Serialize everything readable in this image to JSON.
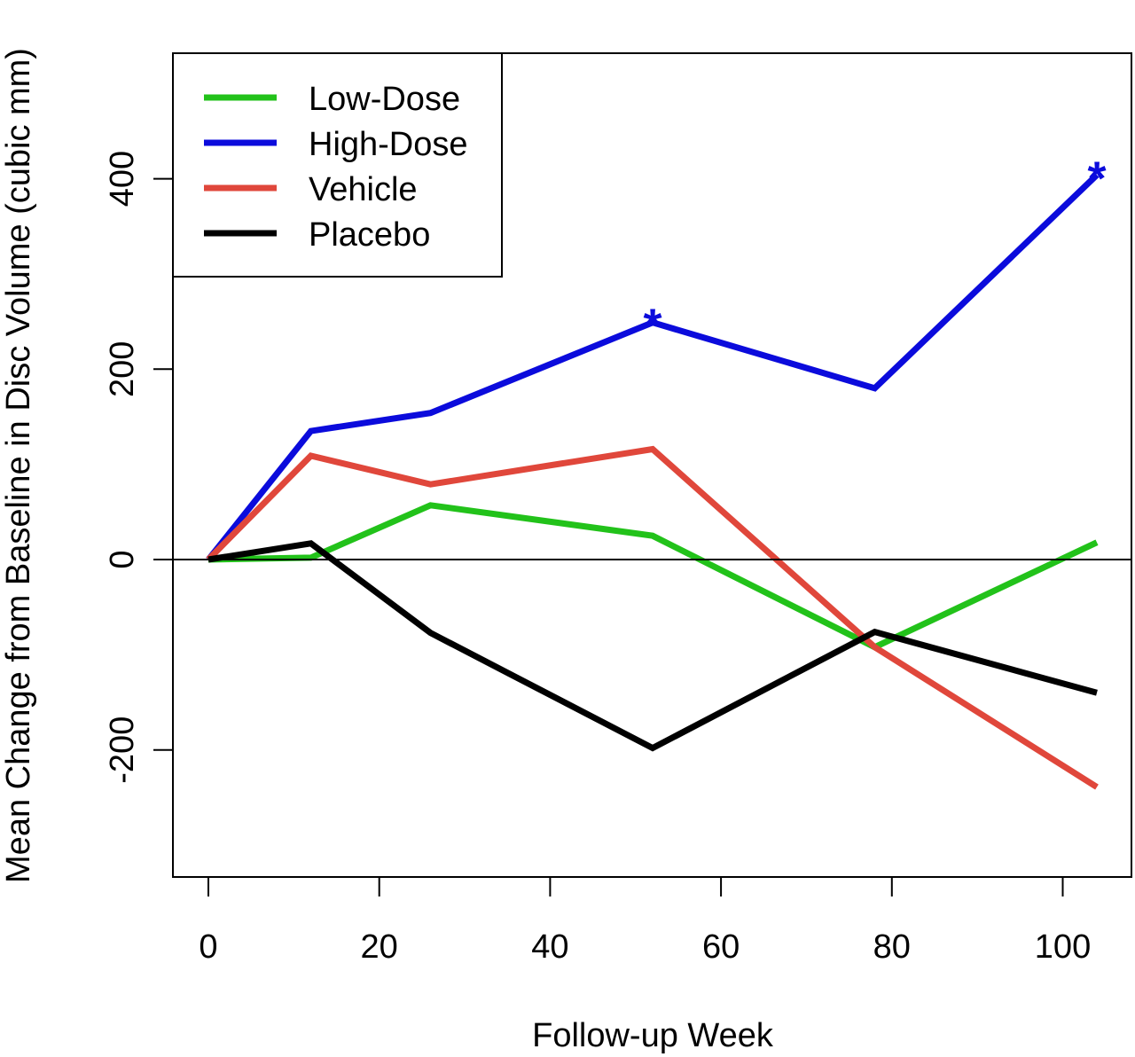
{
  "chart_data": {
    "type": "line",
    "title": "",
    "xlabel": "Follow-up Week",
    "ylabel": "Mean Change from Baseline in Disc Volume (cubic mm)",
    "xlim": [
      -4,
      108
    ],
    "ylim": [
      -333,
      533
    ],
    "x_ticks": [
      0,
      20,
      40,
      60,
      80,
      100
    ],
    "x_tick_labels": [
      "0",
      "20",
      "40",
      "60",
      "80",
      "100"
    ],
    "y_ticks": [
      -200,
      0,
      200,
      400
    ],
    "y_tick_labels": [
      "-200",
      "0",
      "200",
      "400"
    ],
    "x": [
      0,
      12,
      26,
      52,
      78,
      104
    ],
    "reference_line_y": 0,
    "legend_position": "top-left",
    "series": [
      {
        "name": "Low-Dose",
        "color": "#22c21a",
        "values": [
          0,
          2,
          57,
          25,
          -92,
          18
        ]
      },
      {
        "name": "High-Dose",
        "color": "#0b0bdc",
        "values": [
          0,
          135,
          154,
          249,
          180,
          404
        ]
      },
      {
        "name": "Vehicle",
        "color": "#e0473b",
        "values": [
          0,
          109,
          79,
          116,
          -92,
          -239
        ]
      },
      {
        "name": "Placebo",
        "color": "#000000",
        "values": [
          0,
          17,
          -77,
          -198,
          -76,
          -140
        ]
      }
    ],
    "annotations": [
      {
        "text": "*",
        "x": 52,
        "y": 249,
        "color": "#0b0bdc"
      },
      {
        "text": "*",
        "x": 104,
        "y": 404,
        "color": "#0b0bdc"
      }
    ]
  }
}
